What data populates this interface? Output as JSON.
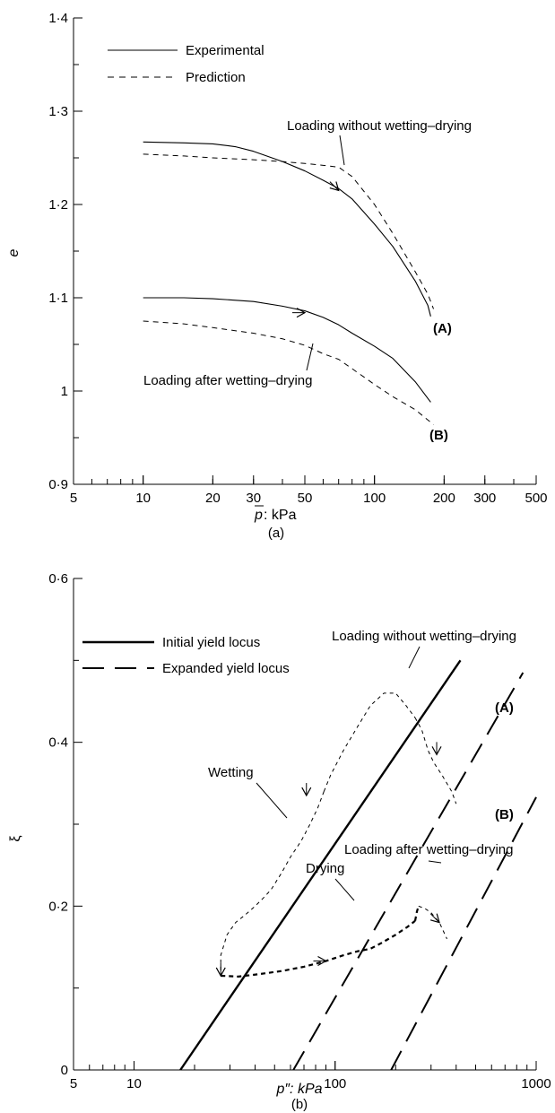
{
  "chart_data": [
    {
      "type": "line",
      "panel": "(a)",
      "xscale": "log",
      "xlim": [
        5,
        500
      ],
      "ylim": [
        0.9,
        1.4
      ],
      "xticks": [
        5,
        10,
        20,
        30,
        50,
        100,
        200,
        300,
        500
      ],
      "xtick_labels": [
        "5",
        "10",
        "20",
        "30",
        "50",
        "100",
        "200",
        "300",
        "500"
      ],
      "yticks": [
        0.9,
        1.0,
        1.1,
        1.2,
        1.3,
        1.4
      ],
      "ytick_labels": [
        "0·9",
        "1",
        "1·1",
        "1·2",
        "1·3",
        "1·4"
      ],
      "xlabel_symbol": "p",
      "xlabel_rest": ": kPa",
      "ylabel": "e",
      "legend": {
        "position": "top-left",
        "entries": [
          {
            "label": "Experimental",
            "style": "solid"
          },
          {
            "label": "Prediction",
            "style": "dashed"
          }
        ]
      },
      "series": [
        {
          "style": "solid",
          "x": [
            10,
            15,
            20,
            25,
            30,
            40,
            50,
            60,
            70,
            80,
            100,
            120,
            150,
            170,
            175
          ],
          "y": [
            1.267,
            1.266,
            1.265,
            1.262,
            1.257,
            1.246,
            1.236,
            1.226,
            1.217,
            1.206,
            1.179,
            1.155,
            1.118,
            1.092,
            1.08
          ]
        },
        {
          "style": "dashed",
          "x": [
            10,
            15,
            20,
            30,
            40,
            50,
            60,
            70,
            80,
            100,
            120,
            150,
            170,
            180
          ],
          "y": [
            1.254,
            1.252,
            1.25,
            1.248,
            1.246,
            1.244,
            1.242,
            1.24,
            1.23,
            1.2,
            1.169,
            1.128,
            1.104,
            1.088
          ]
        },
        {
          "style": "solid",
          "x": [
            10,
            15,
            20,
            30,
            40,
            50,
            60,
            70,
            80,
            100,
            120,
            150,
            175
          ],
          "y": [
            1.1,
            1.1,
            1.099,
            1.096,
            1.091,
            1.086,
            1.079,
            1.071,
            1.062,
            1.048,
            1.035,
            1.01,
            0.988
          ]
        },
        {
          "style": "dashed",
          "x": [
            10,
            15,
            20,
            30,
            40,
            50,
            60,
            70,
            80,
            100,
            120,
            150,
            180
          ],
          "y": [
            1.075,
            1.072,
            1.068,
            1.062,
            1.056,
            1.049,
            1.04,
            1.034,
            1.024,
            1.007,
            0.994,
            0.98,
            0.964
          ]
        }
      ],
      "arrows": [
        {
          "x": 70,
          "y": 1.215,
          "dir": "down-right"
        },
        {
          "x": 50,
          "y": 1.084,
          "dir": "right"
        }
      ],
      "annotations": [
        {
          "id": "a-top",
          "text": "Loading without wetting–drying",
          "anchor": {
            "x": 65,
            "y": 1.238
          },
          "text_at": {
            "x": 72,
            "y": 1.28
          }
        },
        {
          "id": "a-bottom",
          "text": "Loading after wetting–drying",
          "anchor": {
            "x": 50,
            "y": 1.058
          },
          "text_at": {
            "x": 44,
            "y": 1.015
          }
        },
        {
          "id": "a-A",
          "text": "(A)",
          "bold": true,
          "at": {
            "x": 185,
            "y": 1.063
          }
        },
        {
          "id": "a-B",
          "text": "(B)",
          "bold": true,
          "at": {
            "x": 190,
            "y": 0.946
          }
        }
      ]
    },
    {
      "type": "line",
      "panel": "(b)",
      "xscale": "log",
      "xlim": [
        5,
        1000
      ],
      "ylim": [
        0,
        0.6
      ],
      "xticks": [
        5,
        10,
        100,
        1000
      ],
      "xtick_labels": [
        "5",
        "10",
        "100",
        "1000"
      ],
      "yticks": [
        0,
        0.2,
        0.4,
        0.6
      ],
      "ytick_labels": [
        "0",
        "0·2",
        "0·4",
        "0·6"
      ],
      "xlabel": "p″: kPa",
      "ylabel": "ξ",
      "legend": {
        "position": "top-left",
        "entries": [
          {
            "label": "Initial yield locus",
            "style": "solid-bold"
          },
          {
            "label": "Expanded yield locus",
            "style": "long-dash"
          }
        ]
      },
      "series": [
        {
          "style": "solid-bold",
          "x": [
            17,
            420
          ],
          "y": [
            0,
            0.5
          ]
        },
        {
          "style": "long-dash",
          "x": [
            62,
            860
          ],
          "y": [
            0,
            0.485
          ]
        },
        {
          "style": "long-dash",
          "x": [
            190,
            1000
          ],
          "y": [
            0,
            0.333
          ]
        },
        {
          "style": "thin-dash",
          "x": [
            88,
            82,
            75,
            68,
            60,
            54,
            48,
            44,
            40,
            36,
            32,
            29,
            27,
            27
          ],
          "y": [
            0.34,
            0.32,
            0.3,
            0.28,
            0.26,
            0.24,
            0.22,
            0.21,
            0.2,
            0.19,
            0.18,
            0.165,
            0.14,
            0.115
          ]
        },
        {
          "style": "thin-dash",
          "x": [
            88,
            95,
            110,
            130,
            150,
            175,
            200,
            225,
            250
          ],
          "y": [
            0.34,
            0.36,
            0.39,
            0.42,
            0.445,
            0.46,
            0.46,
            0.445,
            0.43
          ]
        },
        {
          "style": "thin-dash",
          "x": [
            250,
            270,
            290,
            310,
            340,
            380,
            400
          ],
          "y": [
            0.43,
            0.415,
            0.39,
            0.375,
            0.36,
            0.34,
            0.325
          ]
        },
        {
          "style": "medium-dash",
          "x": [
            27,
            33,
            42,
            55,
            70,
            90,
            110,
            130,
            150,
            170,
            200,
            230,
            250
          ],
          "y": [
            0.115,
            0.114,
            0.117,
            0.121,
            0.126,
            0.133,
            0.14,
            0.145,
            0.148,
            0.155,
            0.165,
            0.175,
            0.182
          ]
        },
        {
          "style": "medium-dash",
          "x": [
            250,
            255,
            260
          ],
          "y": [
            0.182,
            0.193,
            0.2
          ]
        },
        {
          "style": "thin-dash",
          "x": [
            260,
            280,
            300,
            330,
            360
          ],
          "y": [
            0.2,
            0.197,
            0.192,
            0.18,
            0.16
          ]
        }
      ],
      "arrows": [
        {
          "x": 27,
          "y": 0.115,
          "dir": "down"
        },
        {
          "x": 72,
          "y": 0.335,
          "dir": "down"
        },
        {
          "x": 320,
          "y": 0.385,
          "dir": "down"
        },
        {
          "x": 90,
          "y": 0.133,
          "dir": "right"
        },
        {
          "x": 330,
          "y": 0.18,
          "dir": "down-right"
        }
      ],
      "annotations": [
        {
          "id": "b-top",
          "text": "Loading without wetting–drying",
          "anchor": {
            "x": 190,
            "y": 0.46
          },
          "text_at": {
            "x": 370,
            "y": 0.55
          }
        },
        {
          "id": "b-wetting",
          "text": "Wetting",
          "anchor": {
            "x": 44,
            "y": 0.21
          },
          "text_at": {
            "x": 24,
            "y": 0.34
          }
        },
        {
          "id": "b-drying",
          "text": "Drying",
          "anchor": {
            "x": 135,
            "y": 0.147
          },
          "text_at": {
            "x": 80,
            "y": 0.195
          }
        },
        {
          "id": "b-after",
          "text": "Loading after wetting–drying",
          "anchor": {
            "x": 250,
            "y": 0.2
          },
          "text_at": {
            "x": 350,
            "y": 0.245
          }
        },
        {
          "id": "b-A",
          "text": "(A)",
          "bold": true,
          "at": {
            "x": 760,
            "y": 0.417
          }
        },
        {
          "id": "b-B",
          "text": "(B)",
          "bold": true,
          "at": {
            "x": 760,
            "y": 0.297
          }
        }
      ]
    }
  ]
}
